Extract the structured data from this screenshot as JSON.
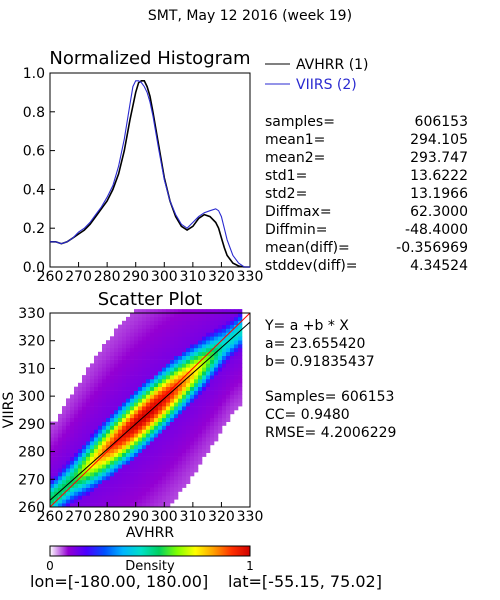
{
  "header": {
    "title": "SMT,  May 12 2016 (week 19)"
  },
  "footer": {
    "lon_label": "lon=[-180.00, 180.00]",
    "lat_label": "lat=[-55.15, 75.02]"
  },
  "stats": [
    {
      "label": "samples=",
      "value": "606153"
    },
    {
      "label": "mean1=",
      "value": "294.105"
    },
    {
      "label": "mean2=",
      "value": "293.747"
    },
    {
      "label": "std1=",
      "value": "13.6222"
    },
    {
      "label": "std2=",
      "value": "13.1966"
    },
    {
      "label": "Diffmax=",
      "value": "62.3000"
    },
    {
      "label": "Diffmin=",
      "value": "-48.4000"
    },
    {
      "label": "mean(diff)=",
      "value": "-0.356969"
    },
    {
      "label": "stddev(diff)=",
      "value": "4.34524"
    }
  ],
  "regression": {
    "equation": "Y= a +b * X",
    "a_label": "a= 23.655420",
    "b_label": "b= 0.91835437",
    "samples_label": "Samples= 606153",
    "cc_label": "CC=  0.9480",
    "rmse_label": "RMSE= 4.2006229"
  },
  "colors": {
    "avhrr": "#000000",
    "viirs": "#2a2ad0",
    "fit_line": "#000000",
    "diagonal": "#ff0000"
  },
  "colorbar": {
    "label": "Density",
    "min_label": "0",
    "max_label": "1",
    "colormap": [
      "#ffffff",
      "#9400d3",
      "#4b00ff",
      "#0050ff",
      "#00b4ff",
      "#00e0c8",
      "#00d060",
      "#80ff00",
      "#ffff00",
      "#ffa000",
      "#ff3000",
      "#d00000"
    ]
  },
  "chart_data": [
    {
      "type": "line",
      "title": "Normalized Histogram",
      "xlabel": "",
      "ylabel": "",
      "xlim": [
        260,
        330
      ],
      "ylim": [
        0,
        1
      ],
      "x_ticks": [
        "260",
        "270",
        "280",
        "290",
        "300",
        "310",
        "320",
        "330"
      ],
      "y_ticks": [
        "0.0",
        "0.2",
        "0.4",
        "0.6",
        "0.8",
        "1.0"
      ],
      "legend_position": "top-right",
      "series": [
        {
          "name": "AVHRR (1)",
          "color": "#000000",
          "x": [
            260,
            262,
            264,
            266,
            268,
            270,
            272,
            274,
            276,
            278,
            280,
            282,
            284,
            286,
            288,
            290,
            291,
            292,
            293,
            294,
            295,
            296,
            298,
            300,
            302,
            304,
            306,
            308,
            310,
            312,
            314,
            316,
            318,
            319,
            320,
            321,
            322,
            324,
            326,
            328,
            330
          ],
          "values": [
            0.13,
            0.13,
            0.12,
            0.13,
            0.15,
            0.17,
            0.19,
            0.22,
            0.26,
            0.3,
            0.34,
            0.4,
            0.48,
            0.6,
            0.76,
            0.9,
            0.95,
            0.96,
            0.96,
            0.93,
            0.88,
            0.8,
            0.63,
            0.46,
            0.34,
            0.26,
            0.21,
            0.19,
            0.21,
            0.25,
            0.27,
            0.26,
            0.23,
            0.2,
            0.15,
            0.1,
            0.06,
            0.02,
            0.005,
            0.0,
            0.0
          ]
        },
        {
          "name": "VIIRS (2)",
          "color": "#2a2ad0",
          "x": [
            260,
            262,
            264,
            266,
            268,
            270,
            272,
            274,
            276,
            278,
            280,
            282,
            284,
            286,
            288,
            289,
            290,
            291,
            292,
            293,
            294,
            295,
            296,
            298,
            300,
            302,
            304,
            306,
            308,
            310,
            312,
            314,
            316,
            318,
            319,
            320,
            321,
            322,
            324,
            326,
            328,
            330
          ],
          "values": [
            0.13,
            0.13,
            0.12,
            0.13,
            0.15,
            0.18,
            0.2,
            0.23,
            0.27,
            0.31,
            0.36,
            0.42,
            0.52,
            0.66,
            0.84,
            0.93,
            0.96,
            0.96,
            0.95,
            0.93,
            0.9,
            0.85,
            0.78,
            0.61,
            0.45,
            0.34,
            0.27,
            0.22,
            0.2,
            0.23,
            0.26,
            0.28,
            0.29,
            0.3,
            0.29,
            0.26,
            0.2,
            0.14,
            0.06,
            0.02,
            0.0,
            0.0
          ]
        }
      ]
    },
    {
      "type": "heatmap",
      "title": "Scatter Plot",
      "xlabel": "AVHRR",
      "ylabel": "VIIRS",
      "xlim": [
        260,
        330
      ],
      "ylim": [
        260,
        330
      ],
      "x_ticks": [
        "260",
        "270",
        "280",
        "290",
        "300",
        "310",
        "320",
        "330"
      ],
      "y_ticks": [
        "260",
        "270",
        "280",
        "290",
        "300",
        "310",
        "320",
        "330"
      ],
      "fit_line": {
        "a": 23.65542,
        "b": 0.91835437
      },
      "diagonal_line": true
    }
  ]
}
